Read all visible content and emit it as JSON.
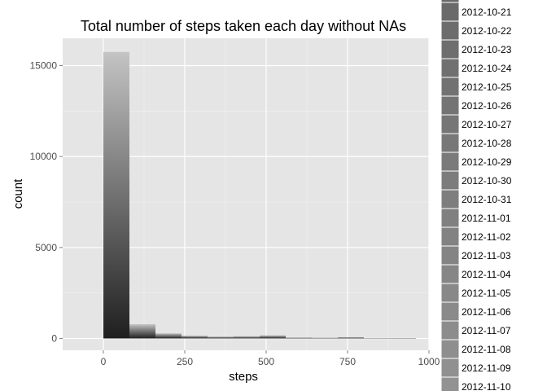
{
  "chart_data": {
    "type": "bar",
    "title": "Total number of steps taken each day without NAs",
    "xlabel": "steps",
    "ylabel": "count",
    "xlim": [
      -125,
      1000
    ],
    "ylim": [
      -650,
      16500
    ],
    "x_ticks": [
      0,
      250,
      500,
      750,
      1000
    ],
    "x_tick_labels": [
      "0",
      "250",
      "500",
      "750",
      "1000"
    ],
    "y_ticks": [
      0,
      5000,
      10000,
      15000
    ],
    "y_tick_labels": [
      "0",
      "5000",
      "10000",
      "15000"
    ],
    "bin_width": 80,
    "bins": [
      {
        "x_start": 0,
        "x_end": 80,
        "count": 15750
      },
      {
        "x_start": 80,
        "x_end": 160,
        "count": 780
      },
      {
        "x_start": 160,
        "x_end": 240,
        "count": 280
      },
      {
        "x_start": 240,
        "x_end": 320,
        "count": 150
      },
      {
        "x_start": 320,
        "x_end": 400,
        "count": 100
      },
      {
        "x_start": 400,
        "x_end": 480,
        "count": 120
      },
      {
        "x_start": 480,
        "x_end": 560,
        "count": 170
      },
      {
        "x_start": 560,
        "x_end": 640,
        "count": 50
      },
      {
        "x_start": 640,
        "x_end": 720,
        "count": 40
      },
      {
        "x_start": 720,
        "x_end": 800,
        "count": 70
      },
      {
        "x_start": 800,
        "x_end": 880,
        "count": 10
      },
      {
        "x_start": 880,
        "x_end": 960,
        "count": 5
      }
    ],
    "grid": true,
    "panel_color": "#e5e5e5",
    "gridline_color": "#ffffff",
    "fill_dark": "#1f1f1f",
    "fill_light": "#c4c4c4",
    "legend_position": "right",
    "legend_entries": [
      "2012-10-21",
      "2012-10-22",
      "2012-10-23",
      "2012-10-24",
      "2012-10-25",
      "2012-10-26",
      "2012-10-27",
      "2012-10-28",
      "2012-10-29",
      "2012-10-30",
      "2012-10-31",
      "2012-11-01",
      "2012-11-02",
      "2012-11-03",
      "2012-11-04",
      "2012-11-05",
      "2012-11-06",
      "2012-11-07",
      "2012-11-08",
      "2012-11-09",
      "2012-11-10"
    ],
    "legend_colors": [
      "#6a6a6a",
      "#6c6c6c",
      "#6e6e6e",
      "#707070",
      "#727272",
      "#747474",
      "#767676",
      "#787878",
      "#7a7a7a",
      "#7c7c7c",
      "#7e7e7e",
      "#808080",
      "#828282",
      "#848484",
      "#868686",
      "#888888",
      "#8a8a8a",
      "#8c8c8c",
      "#8e8e8e",
      "#909090",
      "#929292"
    ]
  }
}
